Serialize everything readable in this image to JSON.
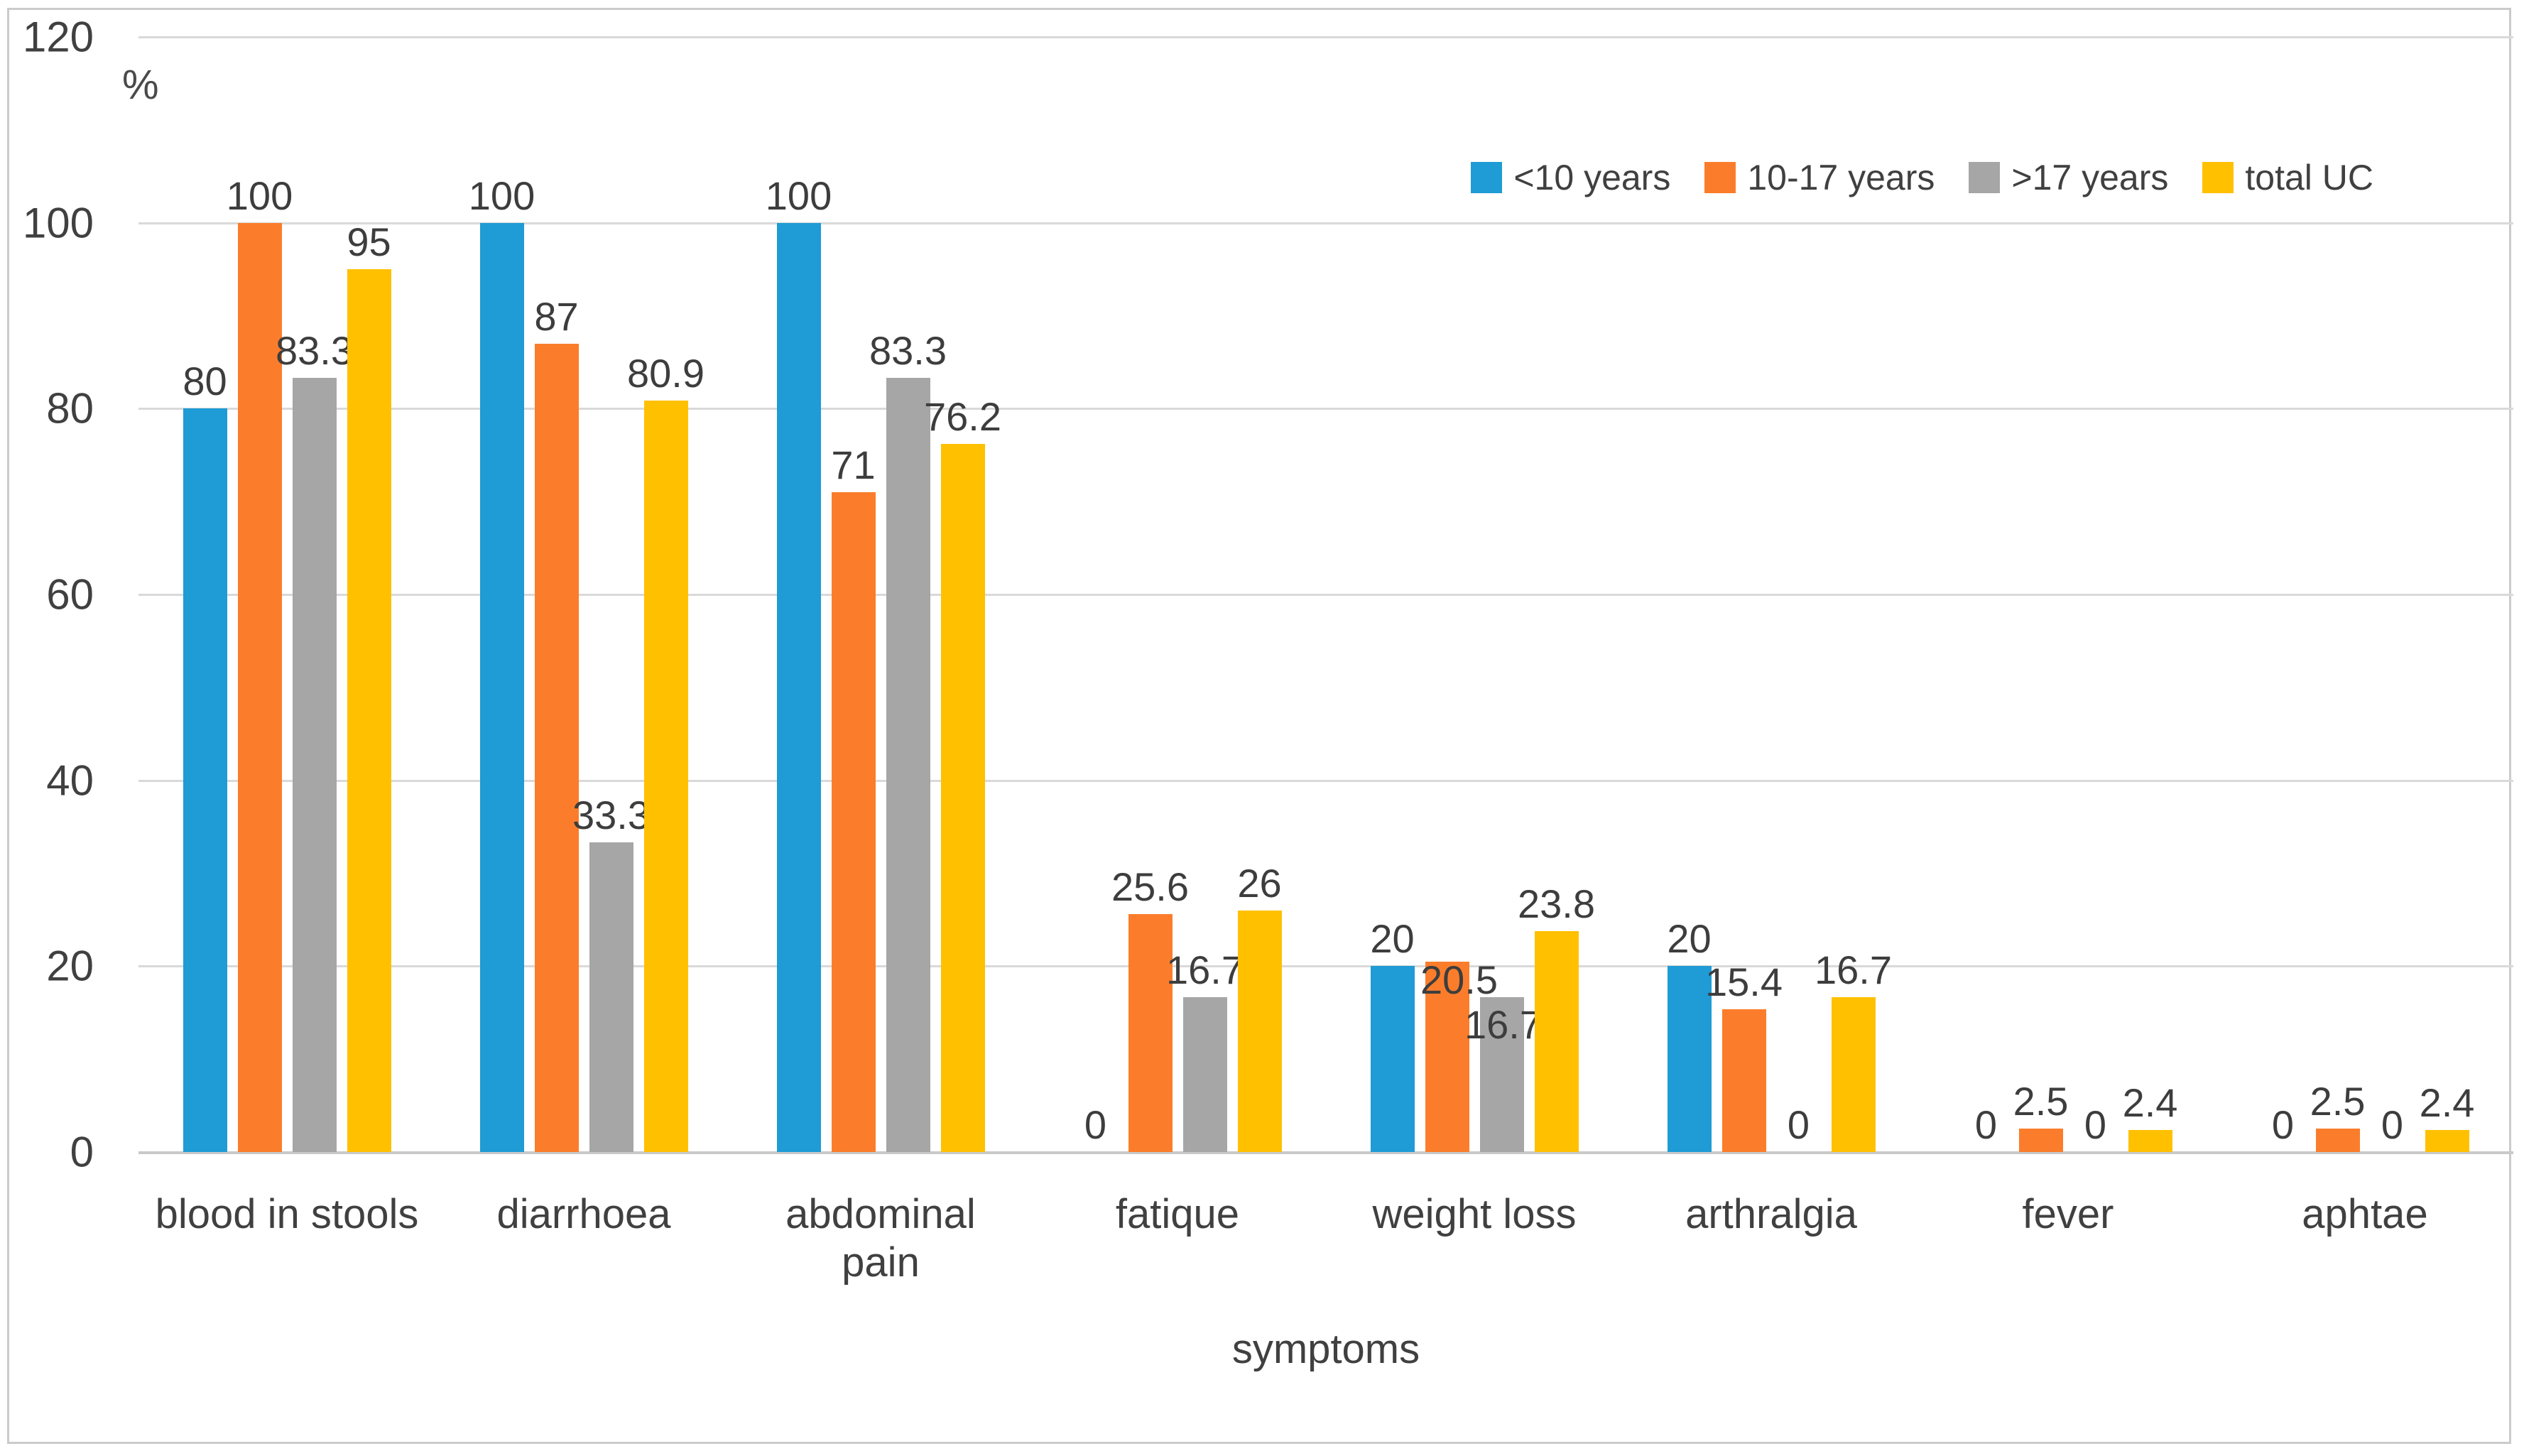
{
  "figure": {
    "y_axis_title": "%",
    "x_axis_title": "symptoms"
  },
  "chart_data": {
    "type": "bar",
    "title": "",
    "xlabel": "symptoms",
    "ylabel": "%",
    "ylim": [
      0,
      120
    ],
    "yticks": [
      0,
      20,
      40,
      60,
      80,
      100,
      120
    ],
    "grid": true,
    "legend_position": "top-right",
    "categories": [
      "blood in stools",
      "diarrhoea",
      "abdominal pain",
      "fatique",
      "weight loss",
      "arthralgia",
      "fever",
      "aphtae"
    ],
    "category_tick_labels": [
      "blood in stools",
      "diarrhoea",
      "abdominal\npain",
      "fatique",
      "weight loss",
      "arthralgia",
      "fever",
      "aphtae"
    ],
    "series": [
      {
        "name": "<10 years",
        "color": "#1f9bd5",
        "values": [
          80,
          100,
          100,
          0,
          20,
          20,
          0,
          0
        ]
      },
      {
        "name": "10-17 years",
        "color": "#fb7d2b",
        "values": [
          100,
          87,
          71,
          25.6,
          20.5,
          15.4,
          2.5,
          2.5
        ]
      },
      {
        "name": ">17 years",
        "color": "#a6a6a6",
        "values": [
          83.3,
          33.3,
          83.3,
          16.7,
          16.7,
          0,
          0,
          0
        ]
      },
      {
        "name": "total UC",
        "color": "#ffc000",
        "values": [
          95,
          80.9,
          76.2,
          26,
          23.8,
          16.7,
          2.4,
          2.4
        ]
      }
    ],
    "data_labels_shown": true,
    "label_offsets": {
      "weight loss": {
        "10-17 years": [
          17,
          64
        ],
        ">17 years": [
          2,
          77
        ]
      }
    },
    "colors": {
      "gridline": "#d9d9d9",
      "axis_line": "#c9c9c9",
      "text": "#404040",
      "frame_border": "#cbcbcb",
      "background": "#ffffff"
    }
  }
}
